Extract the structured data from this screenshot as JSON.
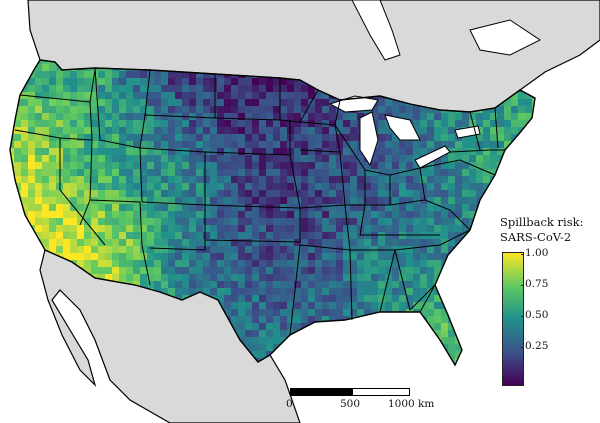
{
  "legend": {
    "title_line1": "Spillback risk:",
    "title_line2": "SARS-CoV-2",
    "ticks": [
      "1.00",
      "0.75",
      "0.50",
      "0.25"
    ],
    "tick_values": [
      1.0,
      0.75,
      0.5,
      0.25
    ],
    "range": [
      0.0,
      1.0
    ],
    "colors": [
      "#440154",
      "#3b528b",
      "#21918c",
      "#5ec962",
      "#fde725"
    ]
  },
  "scale": {
    "label_start": "0",
    "label_mid": "500",
    "label_end": "1000 km"
  },
  "colors": {
    "land_other": "#d9d9d9",
    "water": "#ffffff",
    "borders": "#000000"
  }
}
